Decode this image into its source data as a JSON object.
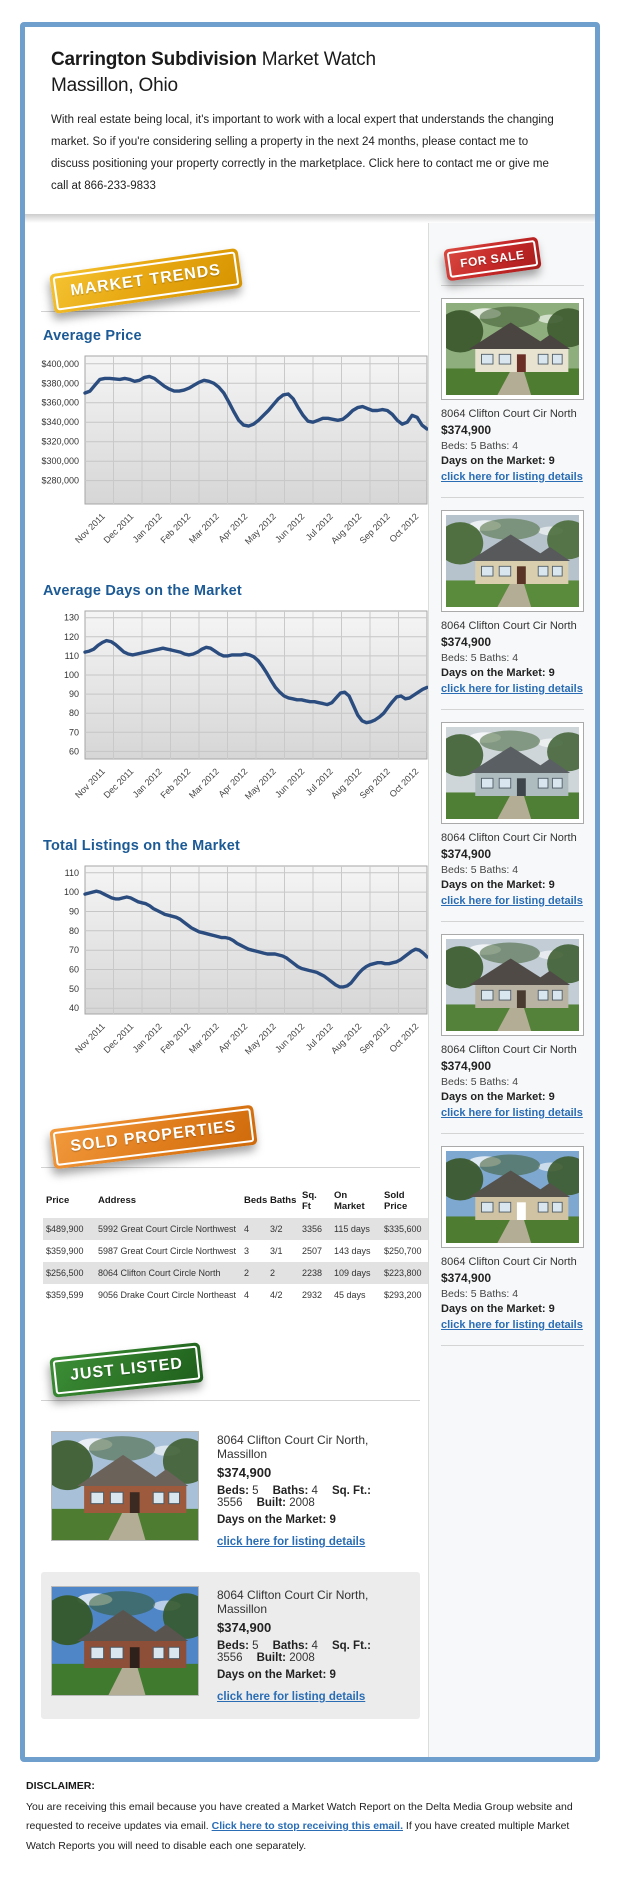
{
  "header": {
    "title_bold": "Carrington Subdivision",
    "title_rest": "Market Watch",
    "subtitle": "Massillon, Ohio",
    "intro": "With real estate being local, it's important to work with a local expert that understands the changing market. So if you're considering selling a property in the next 24 months, please contact me to discuss positioning your property correctly in the marketplace. Click here to contact me or give me call at 866-233-9833"
  },
  "badges": {
    "market_trends": "MARKET TRENDS",
    "for_sale": "FOR SALE",
    "sold_properties": "SOLD PROPERTIES",
    "just_listed": "JUST LISTED"
  },
  "colors": {
    "frame_blue": "#6f9fcc",
    "heading_blue": "#1c5a96",
    "link_blue": "#2a6db5",
    "chart_line": "#2b4c7e",
    "badge_yellow": "#e8a913",
    "badge_red": "#c42727",
    "badge_orange": "#e07d1d",
    "badge_green": "#2c7527"
  },
  "chart_data": [
    {
      "type": "line",
      "title": "Average Price",
      "x_labels": [
        "Nov 2011",
        "Dec 2011",
        "Jan 2012",
        "Feb 2012",
        "Mar 2012",
        "Apr 2012",
        "May 2012",
        "Jun 2012",
        "Jul 2012",
        "Aug 2012",
        "Sep 2012",
        "Oct 2012"
      ],
      "yticks": [
        {
          "label": "$400,000",
          "value": 400000
        },
        {
          "label": "$380,000",
          "value": 380000
        },
        {
          "label": "$360,000",
          "value": 360000
        },
        {
          "label": "$340,000",
          "value": 340000
        },
        {
          "label": "$320,000",
          "value": 320000
        },
        {
          "label": "$300,000",
          "value": 300000
        },
        {
          "label": "$280,000",
          "value": 280000
        }
      ],
      "ylim": [
        256000,
        408000
      ],
      "grid": true,
      "values": [
        370000,
        372000,
        378000,
        384000,
        385000,
        385000,
        384500,
        384000,
        385000,
        384000,
        382000,
        383000,
        386000,
        387000,
        385000,
        381000,
        377000,
        374000,
        372000,
        372000,
        373000,
        375000,
        378000,
        381000,
        383000,
        382000,
        380000,
        376000,
        370000,
        361000,
        351000,
        342000,
        337000,
        336000,
        338000,
        342000,
        347000,
        352000,
        358000,
        364000,
        368000,
        369000,
        364000,
        355000,
        347000,
        341000,
        340000,
        342000,
        344000,
        344000,
        343000,
        342000,
        343000,
        347000,
        352000,
        355000,
        356000,
        354000,
        352000,
        352000,
        353000,
        352000,
        348000,
        342000,
        338000,
        340000,
        347000,
        345000,
        337000,
        333000
      ]
    },
    {
      "type": "line",
      "title": "Average Days on the Market",
      "x_labels": [
        "Nov 2011",
        "Dec 2011",
        "Jan 2012",
        "Feb 2012",
        "Mar 2012",
        "Apr 2012",
        "May 2012",
        "Jun 2012",
        "Jul 2012",
        "Aug 2012",
        "Sep 2012",
        "Oct 2012"
      ],
      "yticks": [
        {
          "label": "130",
          "value": 130
        },
        {
          "label": "120",
          "value": 120
        },
        {
          "label": "110",
          "value": 110
        },
        {
          "label": "100",
          "value": 100
        },
        {
          "label": "90",
          "value": 90
        },
        {
          "label": "80",
          "value": 80
        },
        {
          "label": "70",
          "value": 70
        },
        {
          "label": "60",
          "value": 60
        }
      ],
      "ylim": [
        56,
        133.5
      ],
      "grid": true,
      "values": [
        112,
        112.5,
        113.5,
        115.5,
        117,
        118,
        117.5,
        116,
        114,
        112,
        111,
        110.5,
        111,
        111.5,
        112,
        112.5,
        113,
        113.5,
        114,
        113.5,
        113,
        112.5,
        112,
        111,
        110.5,
        111,
        112,
        113.5,
        114.5,
        114,
        112.5,
        111,
        110,
        110,
        110.5,
        110.5,
        110.5,
        111,
        110.5,
        109.5,
        107.5,
        104.5,
        101,
        97,
        93.5,
        91,
        89,
        88,
        87.5,
        87,
        87,
        86.5,
        86,
        86,
        85.5,
        85,
        84.5,
        85.5,
        88,
        90.5,
        91,
        89,
        84,
        79,
        76,
        75,
        75.5,
        76.5,
        78,
        80,
        83,
        86,
        88.5,
        89,
        87.5,
        88,
        89.5,
        91,
        92.5,
        93.5
      ]
    },
    {
      "type": "line",
      "title": "Total Listings on the Market",
      "x_labels": [
        "Nov 2011",
        "Dec 2011",
        "Jan 2012",
        "Feb 2012",
        "Mar 2012",
        "Apr 2012",
        "May 2012",
        "Jun 2012",
        "Jul 2012",
        "Aug 2012",
        "Sep 2012",
        "Oct 2012"
      ],
      "yticks": [
        {
          "label": "110",
          "value": 110
        },
        {
          "label": "100",
          "value": 100
        },
        {
          "label": "90",
          "value": 90
        },
        {
          "label": "80",
          "value": 80
        },
        {
          "label": "70",
          "value": 70
        },
        {
          "label": "60",
          "value": 60
        },
        {
          "label": "50",
          "value": 50
        },
        {
          "label": "40",
          "value": 40
        }
      ],
      "ylim": [
        37,
        113.5
      ],
      "grid": true,
      "values": [
        99,
        99.5,
        100,
        100.5,
        100,
        99,
        98,
        97,
        96.5,
        96.5,
        97,
        97.5,
        97,
        96,
        95,
        94.5,
        94,
        93,
        91.5,
        90.5,
        89.5,
        88.5,
        88,
        87.5,
        87,
        86,
        84.5,
        83,
        81.5,
        80.5,
        79.5,
        79,
        78.5,
        78,
        77.5,
        77,
        76.5,
        76.5,
        76,
        75,
        73.5,
        72.5,
        71.5,
        70.5,
        70,
        69.5,
        69,
        68.5,
        68,
        68,
        68,
        67.5,
        67,
        66,
        64.5,
        63,
        61.5,
        60.5,
        60,
        59.5,
        59,
        58.5,
        57.5,
        56.5,
        55,
        53.5,
        52,
        51,
        51,
        51.5,
        53,
        55.5,
        58,
        60,
        61.5,
        62.5,
        63,
        63.5,
        63.5,
        63,
        63,
        63.5,
        64,
        65,
        66.5,
        68,
        69.5,
        70.5,
        70,
        68.5,
        66.5
      ]
    }
  ],
  "for_sale": {
    "listings": [
      {
        "address": "8064 Clifton Court Cir North",
        "price": "$374,900",
        "beds_baths": "Beds: 5 Baths: 4",
        "days_on_market": "Days on the Market: 9",
        "details_link": "click here for listing details",
        "photo_palette": {
          "sky": "#8fae7e",
          "trees": "#3c5a2e",
          "lawn": "#4e7d32",
          "roof": "#4a4540",
          "house": "#e8e2d0",
          "door": "#6b2f28"
        }
      },
      {
        "address": "8064 Clifton Court Cir North",
        "price": "$374,900",
        "beds_baths": "Beds: 5 Baths: 4",
        "days_on_market": "Days on the Market: 9",
        "details_link": "click here for listing details",
        "photo_palette": {
          "sky": "#b7c3cc",
          "trees": "#4a6b3a",
          "lawn": "#5a8a3c",
          "roof": "#58595b",
          "house": "#d9cfae",
          "door": "#5a3426"
        }
      },
      {
        "address": "8064 Clifton Court Cir North",
        "price": "$374,900",
        "beds_baths": "Beds: 5 Baths: 4",
        "days_on_market": "Days on the Market: 9",
        "details_link": "click here for listing details",
        "photo_palette": {
          "sky": "#cfd6da",
          "trees": "#46663b",
          "lawn": "#4f7f35",
          "roof": "#5a5f63",
          "house": "#aebcc0",
          "door": "#3e454b"
        }
      },
      {
        "address": "8064 Clifton Court Cir North",
        "price": "$374,900",
        "beds_baths": "Beds: 5 Baths: 4",
        "days_on_market": "Days on the Market: 9",
        "details_link": "click here for listing details",
        "photo_palette": {
          "sky": "#c2cdd6",
          "trees": "#3f5f33",
          "lawn": "#55823a",
          "roof": "#4f4a46",
          "house": "#b9b3a4",
          "door": "#4a3b30"
        }
      },
      {
        "address": "8064 Clifton Court Cir North",
        "price": "$374,900",
        "beds_baths": "Beds: 5 Baths: 4",
        "days_on_market": "Days on the Market: 9",
        "details_link": "click here for listing details",
        "photo_palette": {
          "sky": "#7fa8d0",
          "trees": "#3c5a2e",
          "lawn": "#4e7d32",
          "roof": "#55514b",
          "house": "#cfc3a4",
          "door": "#ffffff"
        }
      }
    ]
  },
  "sold_properties": {
    "headers": [
      "Price",
      "Address",
      "Beds",
      "Baths",
      "Sq. Ft",
      "On Market",
      "Sold Price"
    ],
    "rows": [
      [
        "$489,900",
        "5992 Great Court Circle Northwest",
        "4",
        "3/2",
        "3356",
        "115 days",
        "$335,600"
      ],
      [
        "$359,900",
        "5987 Great Court Circle Northwest",
        "3",
        "3/1",
        "2507",
        "143 days",
        "$250,700"
      ],
      [
        "$256,500",
        "8064 Clifton Court Circle North",
        "2",
        "2",
        "2238",
        "109 days",
        "$223,800"
      ],
      [
        "$359,599",
        "9056 Drake Court Circle Northeast",
        "4",
        "4/2",
        "2932",
        "45 days",
        "$293,200"
      ]
    ]
  },
  "just_listed": {
    "listings": [
      {
        "address": "8064 Clifton Court Cir North, Massillon",
        "price": "$374,900",
        "specs": [
          {
            "label": "Beds:",
            "value": "5"
          },
          {
            "label": "Baths:",
            "value": "4"
          },
          {
            "label": "Sq. Ft.:",
            "value": "3556"
          },
          {
            "label": "Built:",
            "value": "2008"
          }
        ],
        "days_on_market": "Days on the Market: 9",
        "details_link": "click here for listing details",
        "photo_palette": {
          "sky": "#a8c0d8",
          "trees": "#3f5f33",
          "lawn": "#4e7d32",
          "roof": "#6b625a",
          "house": "#9e5a3c",
          "door": "#3a2a22"
        }
      },
      {
        "address": "8064 Clifton Court Cir North, Massillon",
        "price": "$374,900",
        "specs": [
          {
            "label": "Beds:",
            "value": "5"
          },
          {
            "label": "Baths:",
            "value": "4"
          },
          {
            "label": "Sq. Ft.:",
            "value": "3556"
          },
          {
            "label": "Built:",
            "value": "2008"
          }
        ],
        "days_on_market": "Days on the Market: 9",
        "details_link": "click here for listing details",
        "photo_palette": {
          "sky": "#4f86c8",
          "trees": "#35592b",
          "lawn": "#3f7a2e",
          "roof": "#5a544e",
          "house": "#8e4f38",
          "door": "#2e211b"
        }
      }
    ]
  },
  "disclaimer": {
    "heading": "DISCLAIMER:",
    "text_before": "You are receiving this email because you have created a Market Watch Report on the Delta Media Group website and requested to receive updates via email. ",
    "link_text": "Click here to stop receiving this email.",
    "text_after": " If you have created multiple Market Watch Reports you will need to disable each one separately."
  }
}
